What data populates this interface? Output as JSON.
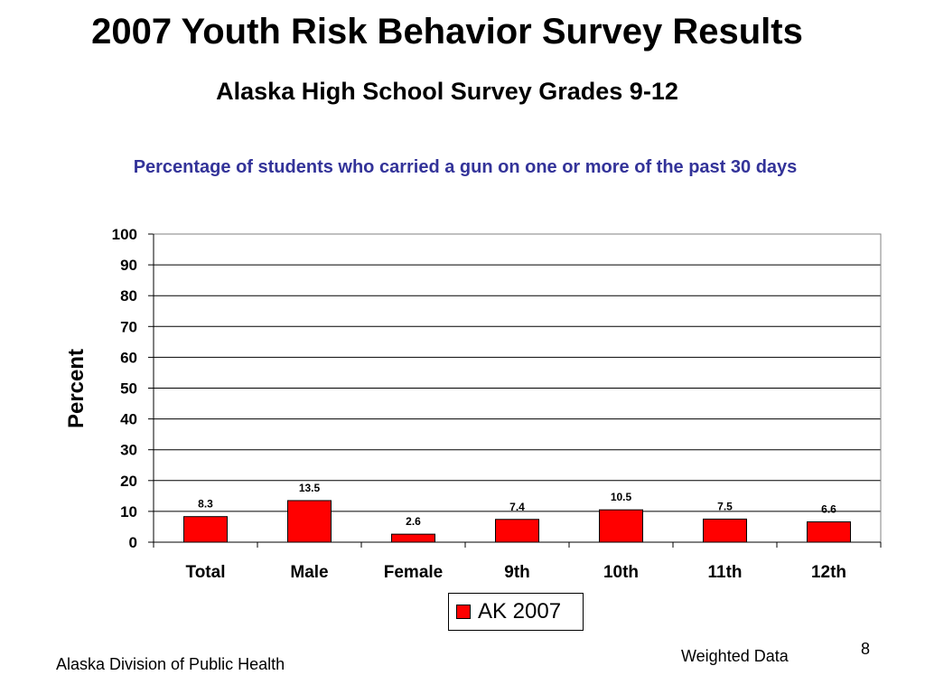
{
  "slide": {
    "title": "2007 Youth Risk Behavior Survey Results",
    "subtitle": "Alaska High School Survey Grades 9-12",
    "footer_source": "Alaska Division of Public Health",
    "footer_note": "Weighted Data",
    "page_number": "8"
  },
  "colors": {
    "bar": "#ff0000",
    "title_accent": "#333399",
    "gridline": "#000000"
  },
  "chart_data": {
    "type": "bar",
    "title": "Percentage of students who carried a gun on one or more of the past 30 days",
    "ylabel": "Percent",
    "xlabel": "",
    "categories": [
      "Total",
      "Male",
      "Female",
      "9th",
      "10th",
      "11th",
      "12th"
    ],
    "series": [
      {
        "name": "AK 2007",
        "values": [
          8.3,
          13.5,
          2.6,
          7.4,
          10.5,
          7.5,
          6.6
        ]
      }
    ],
    "ylim": [
      0,
      100
    ],
    "yticks": [
      0,
      10,
      20,
      30,
      40,
      50,
      60,
      70,
      80,
      90,
      100
    ],
    "grid": true,
    "legend_position": "bottom"
  }
}
